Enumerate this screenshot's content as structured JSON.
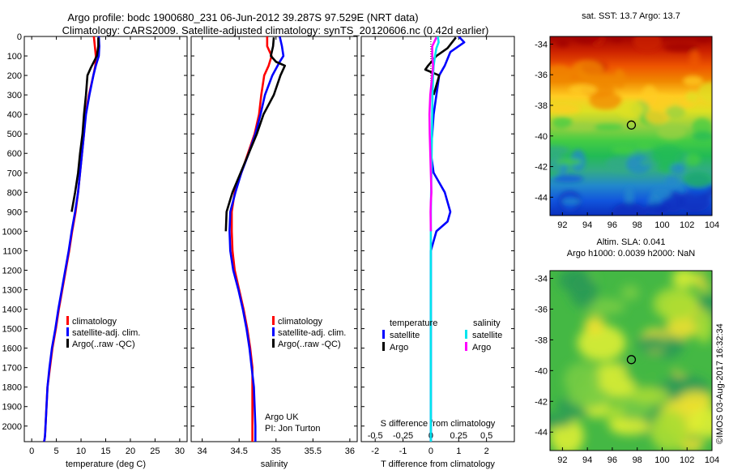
{
  "header": {
    "line1": "Argo profile: bodc 1900680_231 06-Jun-2012 39.287S 97.529E (NRT data)",
    "line2": "Climatology: CARS2009. Satellite-adjusted climatology: synTS_20120606.nc (0.42d earlier)"
  },
  "colors": {
    "climatology": "#ff0000",
    "satellite": "#0000ff",
    "argo": "#000000",
    "sat_salinity": "#00e5ee",
    "argo_salinity": "#ff00ff"
  },
  "side_labels": {
    "imos": "©IMOS 03-Aug-2017 16:32:34"
  },
  "chart_data": [
    {
      "type": "line",
      "id": "temperature",
      "xlabel": "temperature (deg C)",
      "xlim": [
        -1.5,
        31.5
      ],
      "xticks": [
        "0",
        "5",
        "10",
        "15",
        "20",
        "25",
        "30"
      ],
      "xtick_values": [
        0,
        5,
        10,
        15,
        20,
        25,
        30
      ],
      "ylim": [
        0,
        2080
      ],
      "yticks": [
        "0",
        "100",
        "200",
        "300",
        "400",
        "500",
        "600",
        "700",
        "800",
        "900",
        "1000",
        "1100",
        "1200",
        "1300",
        "1400",
        "1500",
        "1600",
        "1700",
        "1800",
        "1900",
        "2000"
      ],
      "ytick_values": [
        0,
        100,
        200,
        300,
        400,
        500,
        600,
        700,
        800,
        900,
        1000,
        1100,
        1200,
        1300,
        1400,
        1500,
        1600,
        1700,
        1800,
        1900,
        2000
      ],
      "legend": [
        "climatology",
        "satellite-adj. clim.",
        "Argo(..raw -QC)"
      ],
      "series": [
        {
          "name": "climatology",
          "color": "#ff0000",
          "x": [
            12.6,
            12.8,
            13.0,
            12.9,
            12.5,
            11.6,
            10.9,
            10.6,
            10.2,
            9.8,
            9.4,
            8.9,
            8.2,
            7.6,
            6.9,
            6.2,
            5.5,
            4.9,
            4.2,
            3.7,
            3.2,
            3.0,
            2.8,
            2.7,
            2.6,
            2.5
          ],
          "y": [
            0,
            50,
            100,
            150,
            200,
            300,
            400,
            500,
            600,
            700,
            800,
            900,
            1000,
            1100,
            1200,
            1300,
            1400,
            1500,
            1600,
            1700,
            1800,
            1900,
            2000,
            2050,
            2070,
            2080
          ]
        },
        {
          "name": "satellite-adj. clim.",
          "color": "#0000ff",
          "x": [
            13.6,
            13.7,
            13.6,
            13.0,
            12.5,
            11.7,
            11.0,
            10.6,
            10.2,
            9.8,
            9.4,
            8.8,
            8.1,
            7.5,
            6.8,
            6.1,
            5.4,
            4.8,
            4.1,
            3.6,
            3.2,
            3.0,
            2.8,
            2.7,
            2.6,
            2.5
          ],
          "y": [
            0,
            50,
            100,
            150,
            200,
            300,
            400,
            500,
            600,
            700,
            800,
            900,
            1000,
            1100,
            1200,
            1300,
            1400,
            1500,
            1600,
            1700,
            1800,
            1900,
            2000,
            2050,
            2070,
            2080
          ]
        },
        {
          "name": "Argo(..raw -QC)",
          "color": "#000000",
          "x": [
            13.5,
            13.5,
            13.2,
            12.0,
            11.3,
            11.0,
            10.6,
            10.3,
            9.8,
            9.4,
            8.8,
            8.1
          ],
          "y": [
            5,
            50,
            100,
            160,
            200,
            300,
            400,
            500,
            600,
            700,
            800,
            900
          ]
        }
      ],
      "annotation": []
    },
    {
      "type": "line",
      "id": "salinity",
      "xlabel": "salinity",
      "xlim": [
        33.85,
        36.1
      ],
      "xticks": [
        "34",
        "34.5",
        "35",
        "35.5",
        "36"
      ],
      "xtick_values": [
        34,
        34.5,
        35,
        35.5,
        36
      ],
      "ylim": [
        0,
        2080
      ],
      "legend": [
        "climatology",
        "satellite-adj. clim.",
        "Argo(..raw -QC)"
      ],
      "series": [
        {
          "name": "climatology",
          "color": "#ff0000",
          "x": [
            34.88,
            34.88,
            34.94,
            34.9,
            34.84,
            34.8,
            34.77,
            34.71,
            34.62,
            34.53,
            34.44,
            34.4,
            34.4,
            34.41,
            34.44,
            34.5,
            34.56,
            34.61,
            34.65,
            34.68,
            34.68,
            34.68
          ],
          "y": [
            0,
            50,
            100,
            150,
            200,
            300,
            400,
            500,
            600,
            700,
            800,
            900,
            1000,
            1100,
            1200,
            1300,
            1400,
            1500,
            1600,
            1700,
            1800,
            2080
          ]
        },
        {
          "name": "satellite-adj. clim.",
          "color": "#0000ff",
          "x": [
            35.05,
            35.08,
            35.1,
            35.05,
            34.95,
            34.85,
            34.79,
            34.72,
            34.63,
            34.53,
            34.45,
            34.38,
            34.37,
            34.38,
            34.42,
            34.49,
            34.55,
            34.6,
            34.64,
            34.67,
            34.7,
            34.72,
            34.72
          ],
          "y": [
            0,
            50,
            100,
            130,
            200,
            300,
            400,
            500,
            600,
            700,
            800,
            900,
            1000,
            1100,
            1200,
            1300,
            1400,
            1500,
            1600,
            1700,
            1800,
            2000,
            2080
          ]
        },
        {
          "name": "Argo(..raw -QC)",
          "color": "#000000",
          "x": [
            34.97,
            34.96,
            34.93,
            35.0,
            35.12,
            35.06,
            34.97,
            34.83,
            34.74,
            34.63,
            34.52,
            34.41,
            34.33,
            34.32
          ],
          "y": [
            5,
            50,
            100,
            130,
            150,
            200,
            300,
            400,
            500,
            600,
            700,
            800,
            900,
            1000
          ]
        }
      ],
      "annotation": [
        "Argo UK",
        "PI: Jon Turton"
      ]
    },
    {
      "type": "line",
      "id": "difference",
      "xlabel": "T difference from climatology",
      "xlabel_top": "S difference from climatology",
      "xlim": [
        -2.5,
        3.0
      ],
      "xticks": [
        "-2",
        "-1",
        "0",
        "1",
        "2"
      ],
      "xtick_values": [
        -2,
        -1,
        0,
        1,
        2
      ],
      "sticks": [
        "-0.5",
        "-0.25",
        "0",
        "0.25",
        "0.5"
      ],
      "stick_values": [
        -0.5,
        -0.25,
        0,
        0.25,
        0.5
      ],
      "s_scale": 4,
      "ylim": [
        0,
        2080
      ],
      "legend_titles": [
        "temperature",
        "salinity"
      ],
      "legend": [
        "satellite",
        "Argo",
        "satellite",
        "Argo"
      ],
      "series": [
        {
          "name": "temperature satellite",
          "color": "#0000ff",
          "x": [
            1.0,
            1.2,
            0.7,
            0.5,
            0.3,
            0.2,
            0.1,
            0.05,
            0.0,
            0.1,
            0.3,
            0.5,
            0.7,
            0.6,
            0.2,
            0.0,
            0.0,
            0.0
          ],
          "y": [
            0,
            30,
            80,
            150,
            200,
            300,
            400,
            500,
            600,
            700,
            750,
            800,
            900,
            950,
            1000,
            1100,
            1300,
            2080
          ]
        },
        {
          "name": "temperature Argo",
          "color": "#000000",
          "x": [
            0.9,
            0.6,
            0.2,
            -0.1,
            -0.2,
            0.3,
            0.2,
            0.1
          ],
          "y": [
            5,
            60,
            100,
            150,
            170,
            200,
            250,
            300
          ]
        },
        {
          "name": "salinity satellite",
          "color": "#00e5ee",
          "x": [
            0.25,
            0.28,
            0.2,
            0.15,
            0.1,
            0.08,
            0.06,
            0.05,
            0.04,
            0.03,
            0.02,
            0.01,
            0.0,
            0.0,
            0.0
          ],
          "y": [
            0,
            30,
            60,
            100,
            150,
            200,
            300,
            400,
            500,
            600,
            700,
            800,
            900,
            1100,
            2080
          ]
        },
        {
          "name": "salinity Argo",
          "color": "#ff00ff",
          "x": [
            0.2,
            0.05,
            0.05,
            0.08,
            0.05,
            -0.02,
            -0.05,
            -0.04,
            -0.02,
            0.0,
            0.02,
            0.0,
            -0.01,
            0.0
          ],
          "y": [
            5,
            50,
            100,
            150,
            200,
            300,
            400,
            500,
            600,
            700,
            800,
            850,
            900,
            1000
          ]
        }
      ],
      "annotation": []
    },
    {
      "type": "heatmap",
      "id": "sst_map",
      "title": "sat. SST: 13.7  Argo: 13.7",
      "xlim": [
        91,
        104
      ],
      "ylim": [
        -45.2,
        -33.5
      ],
      "xticks": [
        "92",
        "94",
        "96",
        "98",
        "100",
        "102",
        "104"
      ],
      "xtick_values": [
        92,
        94,
        96,
        98,
        100,
        102,
        104
      ],
      "yticks": [
        "-34",
        "-36",
        "-38",
        "-40",
        "-42",
        "-44"
      ],
      "ytick_values": [
        -34,
        -36,
        -38,
        -40,
        -42,
        -44
      ],
      "marker": {
        "lon": 97.529,
        "lat": -39.287
      },
      "gradient": [
        "#a00000",
        "#cc2200",
        "#ee5500",
        "#f08800",
        "#ffcc22",
        "#dde022",
        "#99d040",
        "#44cc44",
        "#22bb55",
        "#33aa88",
        "#2288cc",
        "#1155dd",
        "#0a2fbd"
      ]
    },
    {
      "type": "heatmap",
      "id": "sla_map",
      "title": "Altim. SLA: 0.041",
      "subtitle": "Argo h1000: 0.0039 h2000: NaN",
      "xlim": [
        91,
        104
      ],
      "ylim": [
        -45.2,
        -33.5
      ],
      "xticks": [
        "92",
        "94",
        "96",
        "98",
        "100",
        "102",
        "104"
      ],
      "xtick_values": [
        92,
        94,
        96,
        98,
        100,
        102,
        104
      ],
      "yticks": [
        "-34",
        "-36",
        "-38",
        "-40",
        "-42",
        "-44"
      ],
      "ytick_values": [
        -34,
        -36,
        -38,
        -40,
        -42,
        -44
      ],
      "marker": {
        "lon": 97.529,
        "lat": -39.287
      },
      "palette": [
        "#2a9a55",
        "#44b844",
        "#77cc44",
        "#aadd33",
        "#ddee33",
        "#f0e030"
      ]
    }
  ]
}
